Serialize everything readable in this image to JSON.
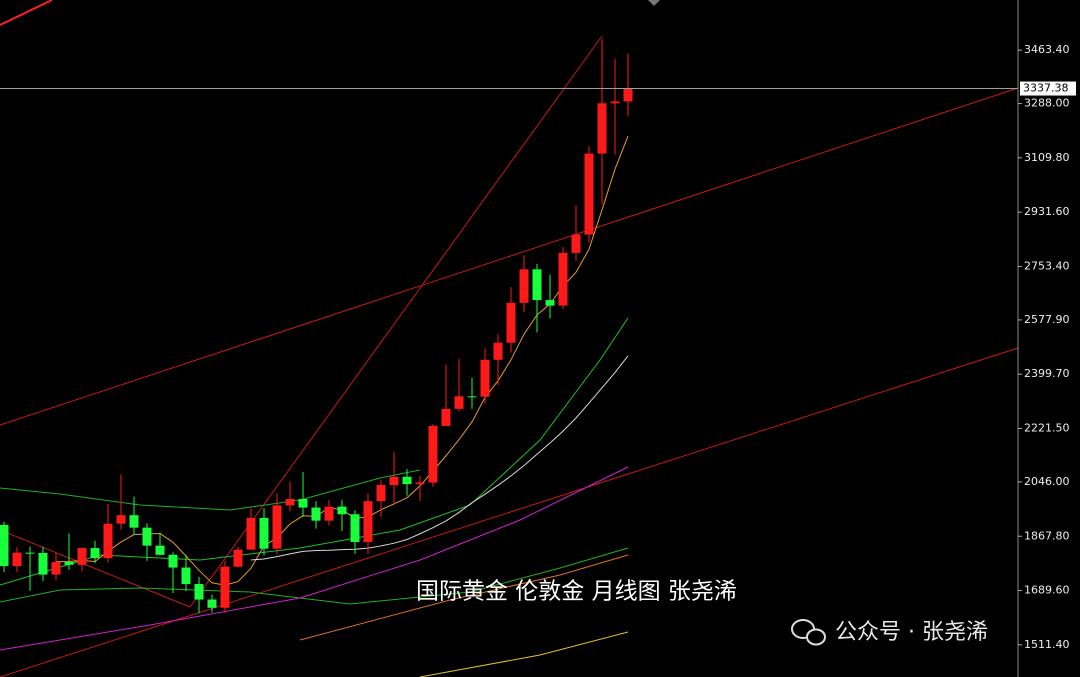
{
  "chart_data": {
    "type": "candlestick",
    "open": [
      1905,
      1770,
      1814,
      1813,
      1742,
      1783,
      1774,
      1829,
      1796,
      1909,
      1937,
      1896,
      1837,
      1807,
      1765,
      1711,
      1660,
      1633,
      1768,
      1824,
      1928,
      1827,
      1969,
      1990,
      1962,
      1919,
      1965,
      1940,
      1849,
      1983,
      2036,
      2063,
      2039,
      2044,
      2230,
      2286,
      2327,
      2326,
      2447,
      2503,
      2634,
      2744,
      2643,
      2625,
      2798,
      2858,
      3124,
      3289,
      3295
    ],
    "high": [
      1916,
      1832,
      1834,
      1834,
      1814,
      1877,
      1831,
      1853,
      1974,
      2070,
      1998,
      1910,
      1880,
      1815,
      1807,
      1735,
      1676,
      1787,
      1833,
      1960,
      1960,
      2009,
      2048,
      2079,
      1983,
      1987,
      1987,
      1953,
      2009,
      2052,
      2146,
      2088,
      2065,
      2236,
      2431,
      2450,
      2388,
      2484,
      2531,
      2685,
      2790,
      2762,
      2726,
      2817,
      2954,
      3148,
      3500,
      3435,
      3452
    ],
    "low": [
      1750,
      1751,
      1688,
      1721,
      1722,
      1758,
      1753,
      1780,
      1781,
      1890,
      1872,
      1787,
      1805,
      1681,
      1688,
      1615,
      1617,
      1616,
      1765,
      1823,
      1805,
      1809,
      1949,
      1932,
      1893,
      1903,
      1885,
      1810,
      1809,
      1932,
      1973,
      2001,
      1984,
      2030,
      2229,
      2277,
      2286,
      2304,
      2364,
      2471,
      2603,
      2537,
      2583,
      2614,
      2772,
      2832,
      2957,
      3121,
      3246
    ],
    "close": [
      1770,
      1814,
      1813,
      1742,
      1783,
      1774,
      1829,
      1796,
      1909,
      1937,
      1896,
      1837,
      1807,
      1765,
      1711,
      1660,
      1633,
      1768,
      1824,
      1928,
      1827,
      1969,
      1990,
      1962,
      1919,
      1965,
      1940,
      1849,
      1983,
      2036,
      2063,
      2039,
      2044,
      2230,
      2286,
      2327,
      2326,
      2447,
      2503,
      2634,
      2744,
      2643,
      2625,
      2798,
      2858,
      3124,
      3289,
      3295,
      3337
    ],
    "up_color": "#ff1a1a",
    "down_color": "#1aff3c",
    "lines": [
      {
        "color": "#e89a2c",
        "values": [
          null,
          null,
          null,
          null,
          1784,
          1785,
          1788,
          1785,
          1818,
          1849,
          1873,
          1875,
          1877,
          1848,
          1803,
          1756,
          1715,
          1707,
          1719,
          1763,
          1836,
          1863,
          1908,
          1935,
          1933,
          1961,
          1955,
          1927,
          1931,
          1955,
          1974,
          1994,
          2033,
          2082,
          2132,
          2185,
          2243,
          2323,
          2378,
          2447,
          2531,
          2594,
          2630,
          2689,
          2734,
          2810,
          2939,
          3073,
          3181
        ]
      },
      {
        "color": "#d8d8d8",
        "values": [
          null,
          null,
          null,
          null,
          null,
          null,
          null,
          null,
          null,
          null,
          null,
          null,
          null,
          null,
          null,
          null,
          null,
          null,
          null,
          1790,
          1793,
          1801,
          1810,
          1818,
          1821,
          1822,
          1824,
          1825,
          1829,
          1836,
          1845,
          1857,
          1876,
          1896,
          1918,
          1946,
          1978,
          2006,
          2035,
          2066,
          2100,
          2137,
          2174,
          2213,
          2256,
          2305,
          2355,
          2405,
          2460
        ]
      }
    ],
    "ylim": [
      1405.8,
      3628
    ],
    "yticks": [
      {
        "value": 3463.4,
        "label": "3463.40"
      },
      {
        "value": 3288,
        "label": "3288.00"
      },
      {
        "value": 3109.8,
        "label": "3109.80"
      },
      {
        "value": 2931.6,
        "label": "2931.60"
      },
      {
        "value": 2753.4,
        "label": "2753.40"
      },
      {
        "value": 2577.9,
        "label": "2577.90"
      },
      {
        "value": 2399.7,
        "label": "2399.70"
      },
      {
        "value": 2221.5,
        "label": "2221.50"
      },
      {
        "value": 2046,
        "label": "2046.00"
      },
      {
        "value": 1867.8,
        "label": "1867.80"
      },
      {
        "value": 1689.6,
        "label": "1689.60"
      },
      {
        "value": 1511.4,
        "label": "1511.40"
      }
    ],
    "current_price": 3337.38,
    "annotation": "国际黄金 伦敦金  月线图 张尧浠",
    "watermark": "公众号 · 张尧浠"
  }
}
